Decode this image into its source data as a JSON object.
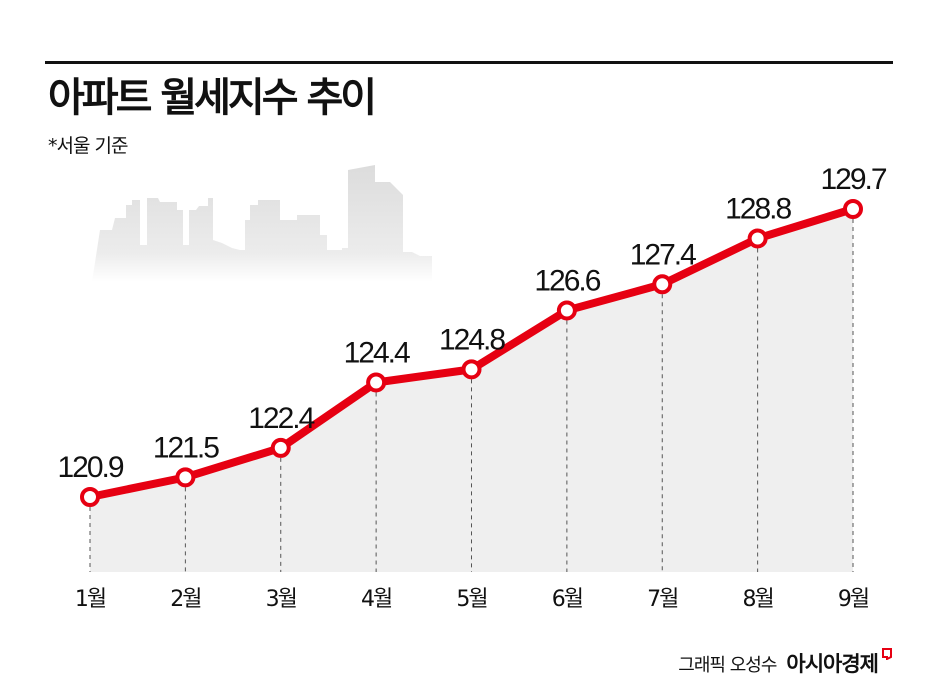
{
  "header": {
    "title": "아파트 월세지수 추이",
    "subtitle": "*서울 기준"
  },
  "footer": {
    "author": "그래픽 오성수",
    "brand": "아시아경제"
  },
  "colors": {
    "line": "#e60012",
    "marker_fill": "#ffffff",
    "area_fill": "#efefef",
    "text": "#111111",
    "skyline": "#e2e2e2"
  },
  "chart_data": {
    "type": "line",
    "title": "아파트 월세지수 추이",
    "subtitle": "*서울 기준",
    "categories": [
      "1월",
      "2월",
      "3월",
      "4월",
      "5월",
      "6월",
      "7월",
      "8월",
      "9월"
    ],
    "series": [
      {
        "name": "아파트 월세지수",
        "values": [
          120.9,
          121.5,
          122.4,
          124.4,
          124.8,
          126.6,
          127.4,
          128.8,
          129.7
        ]
      }
    ],
    "data_labels": [
      "120.9",
      "121.5",
      "122.4",
      "124.4",
      "124.8",
      "126.6",
      "127.4",
      "128.8",
      "129.7"
    ],
    "xlabel": "",
    "ylabel": "",
    "grid": false,
    "legend": "none",
    "area_fill": true
  }
}
